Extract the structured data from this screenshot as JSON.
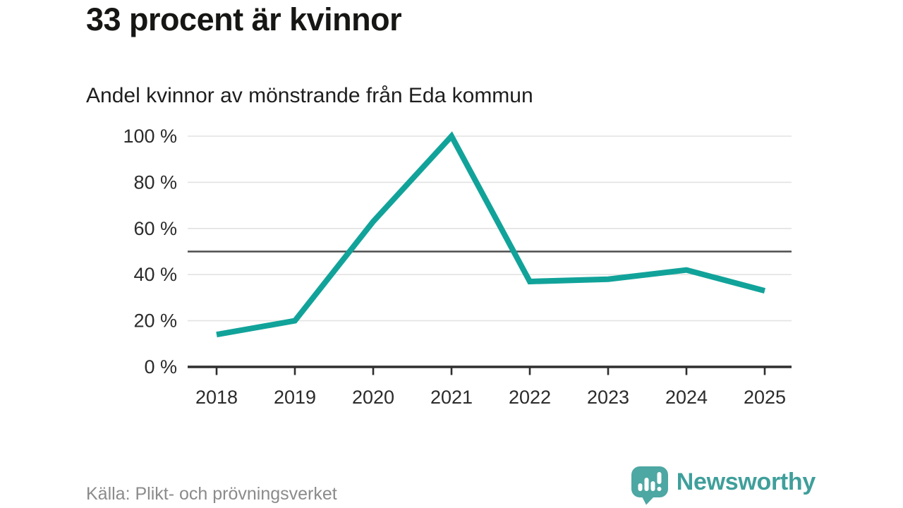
{
  "header": {
    "title": "33 procent är kvinnor",
    "subtitle": "Andel kvinnor av mönstrande från Eda kommun"
  },
  "footer": {
    "source": "Källa: Plikt- och prövningsverket",
    "brand": "Newsworthy"
  },
  "colors": {
    "line": "#11a39a",
    "grid": "#e2e2e2",
    "reference_line": "#4d4d4d",
    "axis": "#2e2e2e",
    "axis_text": "#2b2b2b",
    "muted_text": "#8b8b8b",
    "brand_icon": "#4da7a3",
    "brand_text": "#3f9f9b",
    "title_text": "#161614"
  },
  "chart_data": {
    "type": "line",
    "title": "33 procent är kvinnor",
    "subtitle": "Andel kvinnor av mönstrande från Eda kommun",
    "x": [
      2018,
      2019,
      2020,
      2021,
      2022,
      2023,
      2024,
      2025
    ],
    "series": [
      {
        "name": "Andel kvinnor av mönstrande",
        "values": [
          14,
          20,
          63,
          100,
          37,
          38,
          42,
          33
        ]
      }
    ],
    "xlabel": "",
    "ylabel": "",
    "ylim": [
      0,
      100
    ],
    "yticks": [
      0,
      20,
      40,
      60,
      80,
      100
    ],
    "ytick_suffix": " %",
    "reference_line": 50,
    "grid": "horizontal",
    "legend": "none",
    "source": "Källa: Plikt- och prövningsverket"
  }
}
